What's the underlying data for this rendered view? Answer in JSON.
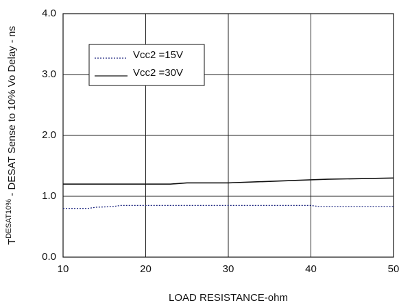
{
  "chart_data": {
    "type": "line",
    "x_label": "LOAD RESISTANCE-ohm",
    "y_label": [
      "T",
      "DESAT10%",
      " - DESAT Sense to 10% Vo Delay - ns"
    ],
    "xlim": [
      10,
      50
    ],
    "xticks": [
      10,
      20,
      30,
      40,
      50
    ],
    "ylim": [
      0,
      4
    ],
    "yticks": [
      {
        "value": 0,
        "label": "0.0"
      },
      {
        "value": 1,
        "label": "1.0"
      },
      {
        "value": 2,
        "label": "2.0"
      },
      {
        "value": 3,
        "label": "3.0"
      },
      {
        "value": 4,
        "label": "4.0"
      }
    ],
    "grid": true,
    "legend": "upper left",
    "series": [
      {
        "name": "Vcc2 =15V",
        "color": "#1a237e",
        "dash": "dotted",
        "x": [
          10,
          13,
          14,
          16,
          17,
          40,
          41,
          50
        ],
        "values": [
          0.8,
          0.8,
          0.82,
          0.83,
          0.85,
          0.85,
          0.83,
          0.83
        ]
      },
      {
        "name": "Vcc2 =30V",
        "color": "#111111",
        "dash": "solid",
        "x": [
          10,
          23,
          25,
          30,
          40,
          42,
          50
        ],
        "values": [
          1.2,
          1.2,
          1.22,
          1.22,
          1.27,
          1.28,
          1.3
        ]
      }
    ]
  }
}
